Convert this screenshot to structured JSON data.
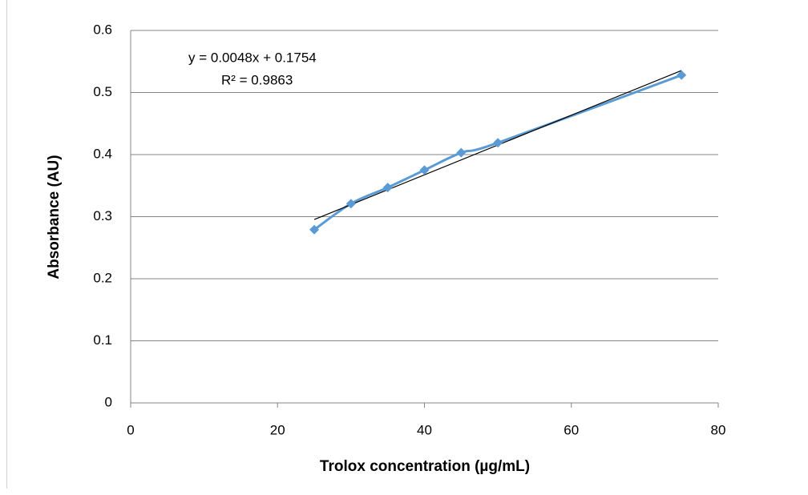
{
  "chart_data": {
    "type": "scatter",
    "x_label": "Trolox concentration (µg/mL)",
    "y_label": "Absorbance (AU)",
    "x": [
      25,
      30,
      35,
      40,
      45,
      50,
      75
    ],
    "series": [
      {
        "color": "#5b9bd5",
        "values": [
          0.279,
          0.321,
          0.347,
          0.375,
          0.403,
          0.419,
          0.528
        ]
      }
    ],
    "xlim": [
      0,
      80
    ],
    "xticks": [
      0,
      20,
      40,
      60,
      80
    ],
    "ylim": [
      0,
      0.6
    ],
    "yticks": [
      0,
      0.1,
      0.2,
      0.3,
      0.4,
      0.5,
      0.6
    ],
    "grid": true,
    "trendline": {
      "slope": 0.0048,
      "intercept": 0.1754,
      "color": "#000000",
      "label": "y = 0.0048x + 0.1754",
      "r2_label": "R² = 0.9863"
    }
  }
}
